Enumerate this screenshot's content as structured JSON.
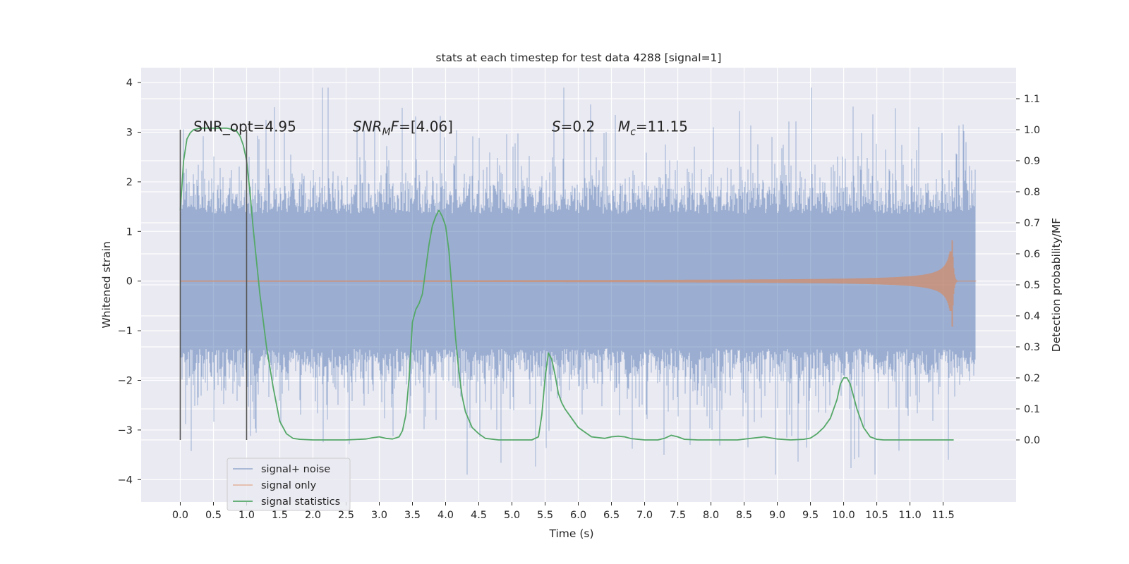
{
  "chart_data": {
    "type": "line",
    "title": "stats at each timestep for test data 4288 [signal=1]",
    "xlabel": "Time (s)",
    "ylabel": "Whitened strain",
    "ylabel_right": "Detection probability/MF",
    "xlim": [
      -0.59,
      12.6
    ],
    "ylim": [
      -4.45,
      4.3
    ],
    "ylim_right": [
      -0.2,
      1.2
    ],
    "x_ticks": [
      "0.0",
      "0.5",
      "1.0",
      "1.5",
      "2.0",
      "2.5",
      "3.0",
      "3.5",
      "4.0",
      "4.5",
      "5.0",
      "5.5",
      "6.0",
      "6.5",
      "7.0",
      "7.5",
      "8.0",
      "8.5",
      "9.0",
      "9.5",
      "10.0",
      "10.5",
      "11.0",
      "11.5"
    ],
    "y_ticks_left": [
      "4",
      "3",
      "2",
      "1",
      "0",
      "−1",
      "−2",
      "−3",
      "−4"
    ],
    "y_ticks_right": [
      "1.1",
      "1.0",
      "0.9",
      "0.8",
      "0.7",
      "0.6",
      "0.5",
      "0.4",
      "0.3",
      "0.2",
      "0.1",
      "0.0"
    ],
    "grid": true,
    "legend_placement": "lower-left",
    "annotations": [
      {
        "x": 0.2,
        "y": 3.0,
        "text": "SNR_opt=4.95"
      },
      {
        "x": 2.6,
        "y": 3.0,
        "text": "SNR_MF=[4.06]",
        "math": "snr_mf"
      },
      {
        "x": 5.6,
        "y": 3.0,
        "text": "S=0.2",
        "math": "s"
      },
      {
        "x": 6.6,
        "y": 3.0,
        "text": "M_c=11.15",
        "math": "mc"
      }
    ],
    "vlines": [
      {
        "x": 0.0,
        "ymin": -3.2,
        "ymax": 3.05
      },
      {
        "x": 1.0,
        "ymin": -3.2,
        "ymax": 3.05
      }
    ],
    "series": [
      {
        "name": "signal+ noise",
        "axis": "left",
        "color": "#4c72b0",
        "style": "noise",
        "x_range": [
          0.0,
          11.99
        ],
        "typical_amplitude": 1.6,
        "peak_amplitude": 3.9
      },
      {
        "name": "signal only",
        "axis": "left",
        "color": "#dd8452",
        "style": "chirp",
        "x_range": [
          0.0,
          12.0
        ],
        "merger_time": 11.65,
        "peak_positive": 0.82,
        "peak_negative": -0.92
      },
      {
        "name": "signal statistics",
        "axis": "right",
        "color": "#55a868",
        "style": "line",
        "x": [
          0.0,
          0.05,
          0.1,
          0.15,
          0.2,
          0.3,
          0.5,
          0.7,
          0.8,
          0.85,
          0.9,
          0.95,
          1.0,
          1.05,
          1.1,
          1.2,
          1.3,
          1.4,
          1.5,
          1.6,
          1.7,
          1.8,
          2.0,
          2.5,
          2.8,
          2.9,
          3.0,
          3.1,
          3.2,
          3.3,
          3.35,
          3.4,
          3.45,
          3.5,
          3.55,
          3.6,
          3.65,
          3.7,
          3.75,
          3.8,
          3.85,
          3.9,
          3.95,
          4.0,
          4.05,
          4.1,
          4.15,
          4.2,
          4.25,
          4.3,
          4.4,
          4.5,
          4.6,
          4.8,
          5.0,
          5.3,
          5.4,
          5.45,
          5.5,
          5.55,
          5.6,
          5.65,
          5.7,
          5.75,
          5.8,
          5.9,
          6.0,
          6.2,
          6.4,
          6.5,
          6.6,
          6.7,
          6.8,
          7.0,
          7.2,
          7.3,
          7.4,
          7.5,
          7.6,
          7.8,
          8.0,
          8.2,
          8.4,
          8.6,
          8.8,
          9.0,
          9.2,
          9.4,
          9.5,
          9.6,
          9.7,
          9.8,
          9.9,
          9.95,
          10.0,
          10.05,
          10.1,
          10.15,
          10.2,
          10.3,
          10.4,
          10.5,
          10.6,
          10.8,
          11.0,
          11.2,
          11.5,
          11.65,
          11.66
        ],
        "y": [
          0.74,
          0.9,
          0.97,
          0.99,
          1.0,
          1.005,
          1.005,
          1.005,
          1.0,
          0.995,
          0.98,
          0.95,
          0.9,
          0.8,
          0.68,
          0.47,
          0.3,
          0.17,
          0.06,
          0.02,
          0.005,
          0.002,
          0.0,
          0.0,
          0.003,
          0.007,
          0.01,
          0.005,
          0.003,
          0.01,
          0.03,
          0.08,
          0.2,
          0.38,
          0.42,
          0.44,
          0.47,
          0.55,
          0.63,
          0.69,
          0.72,
          0.74,
          0.72,
          0.69,
          0.61,
          0.47,
          0.33,
          0.22,
          0.14,
          0.09,
          0.04,
          0.02,
          0.005,
          0.0,
          0.0,
          0.0,
          0.01,
          0.08,
          0.2,
          0.28,
          0.26,
          0.21,
          0.15,
          0.12,
          0.1,
          0.07,
          0.04,
          0.01,
          0.005,
          0.01,
          0.012,
          0.01,
          0.004,
          0.0,
          0.0,
          0.005,
          0.015,
          0.01,
          0.002,
          0.0,
          0.0,
          0.0,
          0.0,
          0.005,
          0.01,
          0.003,
          0.0,
          0.002,
          0.006,
          0.02,
          0.04,
          0.07,
          0.13,
          0.18,
          0.2,
          0.2,
          0.18,
          0.14,
          0.1,
          0.04,
          0.01,
          0.002,
          0.0,
          0.0,
          0.0,
          0.0,
          0.0,
          0.0,
          0.0
        ]
      }
    ]
  }
}
